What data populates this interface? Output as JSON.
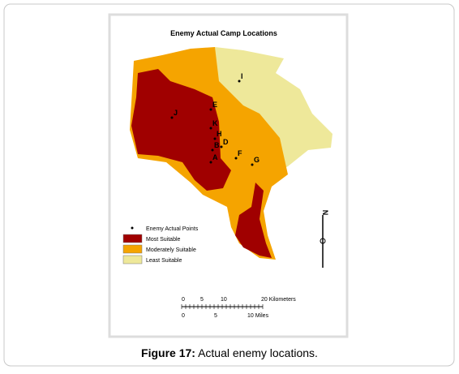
{
  "title": "Enemy Actual Camp Locations",
  "points": [
    {
      "label": "I"
    },
    {
      "label": "J"
    },
    {
      "label": "E"
    },
    {
      "label": "K"
    },
    {
      "label": "H"
    },
    {
      "label": "D"
    },
    {
      "label": "B"
    },
    {
      "label": "A"
    },
    {
      "label": "F"
    },
    {
      "label": "G"
    }
  ],
  "legend": [
    {
      "label": "Enemy Actual Points"
    },
    {
      "label": "Most Suitable"
    },
    {
      "label": "Moderately Suitable"
    },
    {
      "label": "Least Suitable"
    }
  ],
  "scale_km": [
    "0",
    "5",
    "10",
    "20 Kilometers"
  ],
  "scale_miles": [
    "0",
    "5",
    "10 Miles"
  ],
  "north": "N",
  "caption": {
    "prefix": "Figure 17:",
    "text": "Actual enemy locations."
  }
}
